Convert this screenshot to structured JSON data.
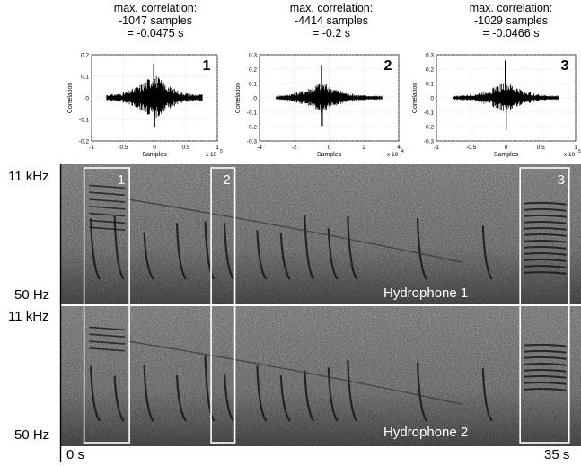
{
  "colors": {
    "background": "#ffffff",
    "spectrogram_box": "#ffffff",
    "trace": "#000000"
  },
  "chart_data": [
    {
      "type": "line",
      "panel": "1",
      "header": [
        "max. correlation:",
        "-1047 samples",
        "= -0.0475 s"
      ],
      "xlabel": "Samples",
      "ylabel": "Correlation",
      "xlim": [
        -1,
        1
      ],
      "x_multiplier": "x 10^5",
      "x_exponent": "5",
      "xticks": [
        "-1",
        "-0.5",
        "0",
        "0.5",
        "1"
      ],
      "ylim": [
        -0.2,
        0.2
      ],
      "yticks": [
        "-0.2",
        "-0.1",
        "0",
        "0.1",
        "0.2"
      ],
      "peak": {
        "x": -0.01047,
        "y": 0.16
      }
    },
    {
      "type": "line",
      "panel": "2",
      "header": [
        "max. correlation:",
        "-4414 samples",
        "= -0.2 s"
      ],
      "xlabel": "Samples",
      "ylabel": "Correlation",
      "xlim": [
        -4,
        4
      ],
      "x_multiplier": "x 10^4",
      "x_exponent": "4",
      "xticks": [
        "-4",
        "-2",
        "0",
        "2",
        "4"
      ],
      "ylim": [
        -0.3,
        0.3
      ],
      "yticks": [
        "-0.3",
        "-0.2",
        "-0.1",
        "0",
        "0.1",
        "0.2",
        "0.3"
      ],
      "peak": {
        "x": -0.4414,
        "y": 0.23
      }
    },
    {
      "type": "line",
      "panel": "3",
      "header": [
        "max. correlation:",
        "-1029 samples",
        "= -0.0466 s"
      ],
      "xlabel": "Samples",
      "ylabel": "Correlation",
      "xlim": [
        -1,
        1
      ],
      "x_multiplier": "x 10^5",
      "x_exponent": "5",
      "xticks": [
        "-1",
        "-0.5",
        "0",
        "0.5",
        "1"
      ],
      "ylim": [
        -0.3,
        0.3
      ],
      "yticks": [
        "-0.3",
        "-0.2",
        "-0.1",
        "0",
        "0.1",
        "0.2",
        "0.3"
      ],
      "peak": {
        "x": -0.01029,
        "y": 0.26
      }
    },
    {
      "type": "heatmap",
      "tracks": [
        {
          "name": "Hydrophone 1",
          "freq_top": "11 kHz",
          "freq_bottom": "50 Hz"
        },
        {
          "name": "Hydrophone 2",
          "freq_top": "11 kHz",
          "freq_bottom": "50 Hz"
        }
      ],
      "time_start": "0 s",
      "time_end": "35 s",
      "time_range_s": [
        0,
        35
      ],
      "boxes": [
        {
          "label": "1",
          "t_start": 1.55,
          "t_end": 4.6
        },
        {
          "label": "2",
          "t_start": 10.1,
          "t_end": 11.7
        },
        {
          "label": "3",
          "t_start": 30.9,
          "t_end": 34.2
        }
      ]
    }
  ]
}
